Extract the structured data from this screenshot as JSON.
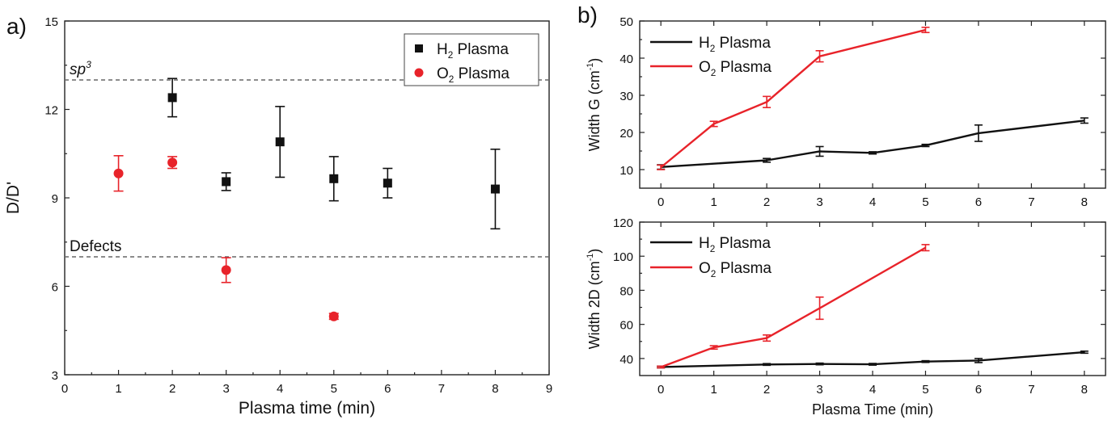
{
  "panel_labels": {
    "a": "a)",
    "b": "b)"
  },
  "chart_data": [
    {
      "id": "a",
      "type": "scatter",
      "xlabel": "Plasma time (min)",
      "ylabel": "D/D'",
      "xlim": [
        0,
        9
      ],
      "ylim": [
        3,
        15
      ],
      "xticks": [
        0,
        1,
        2,
        3,
        4,
        5,
        6,
        7,
        8,
        9
      ],
      "yticks": [
        3,
        6,
        9,
        12,
        15
      ],
      "legend": {
        "position": "top-right",
        "boxed": true
      },
      "reference_lines": [
        {
          "name": "sp3-line",
          "y": 13,
          "label": "sp",
          "label_sup": "3",
          "italic": true
        },
        {
          "name": "defects-line",
          "y": 7,
          "label": "Defects",
          "label_sup": "",
          "italic": false
        }
      ],
      "series": [
        {
          "name": "H2 Plasma",
          "label_main": "H",
          "label_sub": "2",
          "label_rest": " Plasma",
          "marker": "square",
          "color": "#111111",
          "x": [
            2,
            3,
            4,
            5,
            6,
            8
          ],
          "y": [
            12.4,
            9.55,
            10.9,
            9.65,
            9.5,
            9.3
          ],
          "err": [
            0.65,
            0.3,
            1.2,
            0.75,
            0.5,
            1.35
          ]
        },
        {
          "name": "O2 Plasma",
          "label_main": "O",
          "label_sub": "2",
          "label_rest": " Plasma",
          "marker": "circle",
          "color": "#e8232a",
          "x": [
            1,
            2,
            3,
            5
          ],
          "y": [
            9.83,
            10.2,
            6.55,
            4.98
          ],
          "err": [
            0.6,
            0.2,
            0.42,
            0.1
          ]
        }
      ]
    },
    {
      "id": "b-top",
      "type": "line",
      "xlabel": "",
      "ylabel_main": "Width G (cm",
      "ylabel_sup": "-1",
      "ylabel_end": ")",
      "xlim": [
        -0.4,
        8.4
      ],
      "ylim": [
        5,
        50
      ],
      "xticks": [
        0,
        1,
        2,
        3,
        4,
        5,
        6,
        7,
        8
      ],
      "yticks": [
        10,
        20,
        30,
        40,
        50
      ],
      "legend": {
        "position": "top-left",
        "boxed": false
      },
      "series": [
        {
          "name": "H2 Plasma",
          "label_main": "H",
          "label_sub": "2",
          "label_rest": " Plasma",
          "color": "#111111",
          "x": [
            0,
            2,
            3,
            4,
            5,
            6,
            8
          ],
          "y": [
            10.7,
            12.5,
            14.9,
            14.5,
            16.5,
            19.8,
            23.2
          ],
          "err": [
            0.6,
            0.5,
            1.3,
            0.3,
            0.3,
            2.2,
            0.7
          ]
        },
        {
          "name": "O2 Plasma",
          "label_main": "O",
          "label_sub": "2",
          "label_rest": " Plasma",
          "color": "#e8232a",
          "x": [
            0,
            1,
            2,
            3,
            5
          ],
          "y": [
            10.6,
            22.3,
            28.2,
            40.5,
            47.6
          ],
          "err": [
            0.6,
            0.7,
            1.5,
            1.5,
            0.7
          ]
        }
      ]
    },
    {
      "id": "b-bottom",
      "type": "line",
      "xlabel": "Plasma Time (min)",
      "ylabel_main": "Width 2D (cm",
      "ylabel_sup": "-1",
      "ylabel_end": ")",
      "xlim": [
        -0.4,
        8.4
      ],
      "ylim": [
        30,
        120
      ],
      "xticks": [
        0,
        1,
        2,
        3,
        4,
        5,
        6,
        7,
        8
      ],
      "yticks": [
        40,
        60,
        80,
        100,
        120
      ],
      "legend": {
        "position": "top-left",
        "boxed": false
      },
      "series": [
        {
          "name": "H2 Plasma",
          "label_main": "H",
          "label_sub": "2",
          "label_rest": " Plasma",
          "color": "#111111",
          "x": [
            0,
            2,
            3,
            4,
            5,
            6,
            8
          ],
          "y": [
            35,
            36.5,
            36.8,
            36.6,
            38.2,
            38.8,
            43.7
          ],
          "err": [
            0.5,
            0.5,
            0.5,
            0.5,
            0.5,
            1.2,
            0.6
          ]
        },
        {
          "name": "O2 Plasma",
          "label_main": "O",
          "label_sub": "2",
          "label_rest": " Plasma",
          "color": "#e8232a",
          "x": [
            0,
            1,
            2,
            3,
            5
          ],
          "y": [
            35,
            46.5,
            52,
            69.5,
            105
          ],
          "err": [
            0.5,
            1.0,
            1.8,
            6.5,
            1.8
          ]
        }
      ]
    }
  ]
}
